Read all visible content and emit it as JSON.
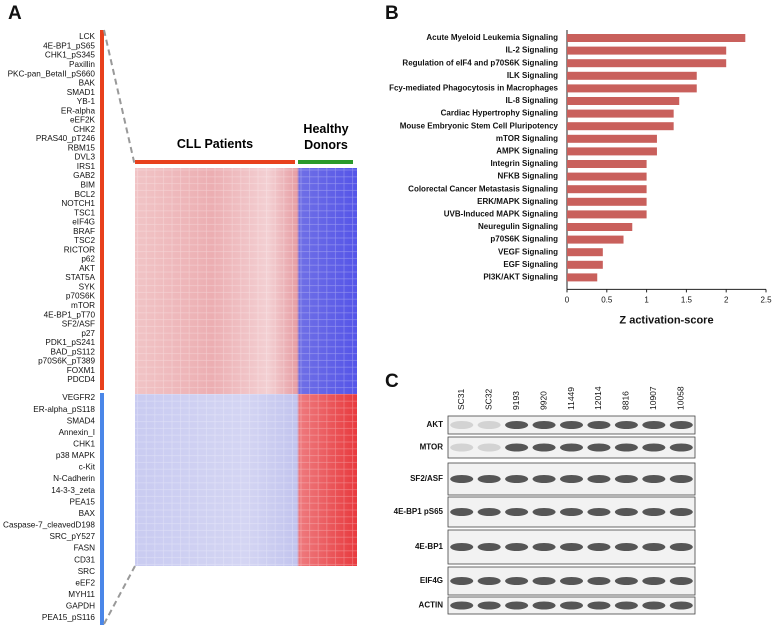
{
  "panel_a": {
    "label": "A",
    "column_groups": [
      "CLL Patients",
      "Healthy Donors"
    ],
    "row_groups": [
      [
        "LCK",
        "4E-BP1_pS65",
        "CHK1_pS345",
        "Paxillin",
        "PKC-pan_BetaII_pS660",
        "BAK",
        "SMAD1",
        "YB-1",
        "ER-alpha",
        "eEF2K",
        "CHK2",
        "PRAS40_pT246",
        "RBM15",
        "DVL3",
        "IRS1",
        "GAB2",
        "BIM",
        "BCL2",
        "NOTCH1",
        "TSC1",
        "eIF4G",
        "BRAF",
        "TSC2",
        "RICTOR",
        "p62",
        "AKT",
        "STAT5A",
        "SYK",
        "p70S6K",
        "mTOR",
        "4E-BP1_pT70",
        "SF2/ASF",
        "p27",
        "PDK1_pS241",
        "BAD_pS112",
        "p70S6K_pT389",
        "FOXM1",
        "PDCD4"
      ],
      [
        "VEGFR2",
        "ER-alpha_pS118",
        "SMAD4",
        "Annexin_I",
        "CHK1",
        "p38 MAPK",
        "c-Kit",
        "N-Cadherin",
        "14-3-3_zeta",
        "PEA15",
        "BAX",
        "Caspase-7_cleavedD198",
        "SRC_pY527",
        "FASN",
        "CD31",
        "SRC",
        "eEF2",
        "MYH11",
        "GAPDH",
        "PEA15_pS116"
      ]
    ]
  },
  "chart_data": {
    "type": "bar",
    "orientation": "horizontal",
    "panel_label": "B",
    "categories": [
      "Acute Myeloid Leukemia Signaling",
      "IL-2 Signaling",
      "Regulation of eIF4 and p70S6K Signaling",
      "ILK Signaling",
      "Fcy-mediated Phagocytosis in Macrophages",
      "IL-8 Signaling",
      "Cardiac Hypertrophy Signaling",
      "Mouse Embryonic Stem Cell Pluripotency",
      "mTOR Signaling",
      "AMPK Signaling",
      "Integrin Signaling",
      "NFKB Signaling",
      "Colorectal Cancer Metastasis Signaling",
      "ERK/MAPK Signaling",
      "UVB-Induced MAPK Signaling",
      "Neuregulin Signaling",
      "p70S6K Signaling",
      "VEGF Signaling",
      "EGF Signaling",
      "PI3K/AKT Signaling"
    ],
    "values": [
      2.24,
      2.0,
      2.0,
      1.63,
      1.63,
      1.41,
      1.34,
      1.34,
      1.13,
      1.13,
      1.0,
      1.0,
      1.0,
      1.0,
      1.0,
      0.82,
      0.71,
      0.45,
      0.45,
      0.38
    ],
    "color": "#c9605c",
    "xlim": [
      0,
      2.5
    ],
    "xticks": [
      0,
      0.5,
      1,
      1.5,
      2,
      2.5
    ],
    "xlabel": "Z activation-score"
  },
  "panel_c": {
    "label": "C",
    "lanes": [
      "SC31",
      "SC32",
      "9193",
      "9920",
      "11449",
      "12014",
      "8816",
      "10907",
      "10058"
    ],
    "bands": [
      "AKT",
      "MTOR",
      "SF2/ASF",
      "4E-BP1 pS65",
      "4E-BP1",
      "EIF4G",
      "ACTIN"
    ]
  }
}
